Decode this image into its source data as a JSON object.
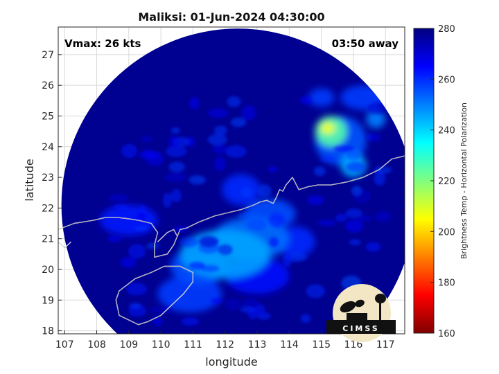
{
  "chart_data": {
    "type": "heatmap",
    "title": "Maliksi: 01-Jun-2024 04:30:00",
    "annotations": {
      "left": "Vmax: 26 kts",
      "right": "03:50 away"
    },
    "xlabel": "longitude",
    "ylabel": "latitude",
    "xlim": [
      106.8,
      117.6
    ],
    "ylim": [
      17.9,
      27.9
    ],
    "xticks": [
      107,
      108,
      109,
      110,
      111,
      112,
      113,
      114,
      115,
      116,
      117
    ],
    "yticks": [
      18,
      19,
      20,
      21,
      22,
      23,
      24,
      25,
      26,
      27
    ],
    "grid": true,
    "swath": {
      "center": [
        112.4,
        22.1
      ],
      "radius_deg": 5.5
    },
    "background_value": 278,
    "colorbar": {
      "label": "Brightness Temp - Horizontal Polarization",
      "range": [
        160,
        280
      ],
      "ticks": [
        160,
        180,
        200,
        220,
        240,
        260,
        280
      ]
    },
    "features": [
      {
        "lon": 112.0,
        "lat": 20.5,
        "sx": 1.4,
        "sy": 0.8,
        "value": 246
      },
      {
        "lon": 112.8,
        "lat": 21.0,
        "sx": 1.2,
        "sy": 0.7,
        "value": 252
      },
      {
        "lon": 111.2,
        "lat": 20.1,
        "sx": 0.9,
        "sy": 0.6,
        "value": 256
      },
      {
        "lon": 113.4,
        "lat": 21.8,
        "sx": 0.8,
        "sy": 0.5,
        "value": 256
      },
      {
        "lon": 112.5,
        "lat": 22.6,
        "sx": 0.6,
        "sy": 0.5,
        "value": 260
      },
      {
        "lon": 115.3,
        "lat": 24.5,
        "sx": 0.5,
        "sy": 0.5,
        "value": 225
      },
      {
        "lon": 115.2,
        "lat": 24.6,
        "sx": 0.22,
        "sy": 0.18,
        "value": 205
      },
      {
        "lon": 115.6,
        "lat": 24.2,
        "sx": 0.8,
        "sy": 0.8,
        "value": 255
      },
      {
        "lon": 116.0,
        "lat": 23.4,
        "sx": 0.4,
        "sy": 0.4,
        "value": 245
      },
      {
        "lon": 116.3,
        "lat": 25.6,
        "sx": 0.7,
        "sy": 0.4,
        "value": 258
      },
      {
        "lon": 115.0,
        "lat": 25.6,
        "sx": 0.4,
        "sy": 0.3,
        "value": 258
      },
      {
        "lon": 110.9,
        "lat": 19.2,
        "sx": 1.0,
        "sy": 0.6,
        "value": 258
      },
      {
        "lon": 114.2,
        "lat": 20.9,
        "sx": 0.6,
        "sy": 0.5,
        "value": 260
      },
      {
        "lon": 109.0,
        "lat": 21.6,
        "sx": 0.9,
        "sy": 0.5,
        "value": 262
      },
      {
        "lon": 113.0,
        "lat": 19.8,
        "sx": 1.0,
        "sy": 0.6,
        "value": 264
      },
      {
        "lon": 116.7,
        "lat": 24.9,
        "sx": 0.3,
        "sy": 0.3,
        "value": 250
      }
    ],
    "coastlines": [
      {
        "name": "south-china-coast",
        "lon": [
          106.8,
          107.3,
          107.9,
          108.3,
          108.6,
          109.0,
          109.3,
          109.7,
          109.9,
          109.8,
          109.8,
          110.2,
          110.4,
          110.6,
          110.8,
          111.2,
          111.7,
          112.1,
          112.5,
          112.9,
          113.1,
          113.3,
          113.5,
          113.6,
          113.7,
          113.8,
          113.9,
          114.1,
          114.3,
          114.6,
          114.9,
          115.3,
          115.8,
          116.3,
          116.8,
          117.2,
          117.6
        ],
        "lat": [
          21.3,
          21.5,
          21.6,
          21.7,
          21.7,
          21.65,
          21.6,
          21.5,
          21.2,
          20.8,
          20.4,
          20.5,
          20.8,
          21.3,
          21.35,
          21.55,
          21.75,
          21.85,
          21.95,
          22.1,
          22.2,
          22.25,
          22.15,
          22.35,
          22.6,
          22.55,
          22.75,
          23.0,
          22.6,
          22.7,
          22.75,
          22.75,
          22.85,
          23.0,
          23.25,
          23.6,
          23.7
        ]
      },
      {
        "name": "hainan-island",
        "lon": [
          110.1,
          110.6,
          111.0,
          111.0,
          110.7,
          110.3,
          110.0,
          109.6,
          109.3,
          109.1,
          108.7,
          108.6,
          108.7,
          109.2,
          109.7,
          110.1
        ],
        "lat": [
          20.1,
          20.1,
          19.9,
          19.6,
          19.2,
          18.8,
          18.5,
          18.3,
          18.2,
          18.3,
          18.5,
          19.0,
          19.3,
          19.7,
          19.9,
          20.1
        ]
      },
      {
        "name": "vietnam-coast",
        "lon": [
          106.8,
          107.0,
          107.2
        ],
        "lat": [
          20.9,
          20.7,
          20.9
        ]
      },
      {
        "name": "leizhou-peninsula",
        "lon": [
          109.9,
          110.0,
          110.2,
          110.4,
          110.5
        ],
        "lat": [
          20.9,
          21.0,
          21.2,
          21.3,
          21.1
        ]
      }
    ]
  },
  "logo": {
    "text": "CIMSS"
  },
  "colors": {
    "swath_background": "#000080",
    "grid": "#d9d9d9",
    "coastline": "#ffffff",
    "axes_border": "#262626"
  }
}
